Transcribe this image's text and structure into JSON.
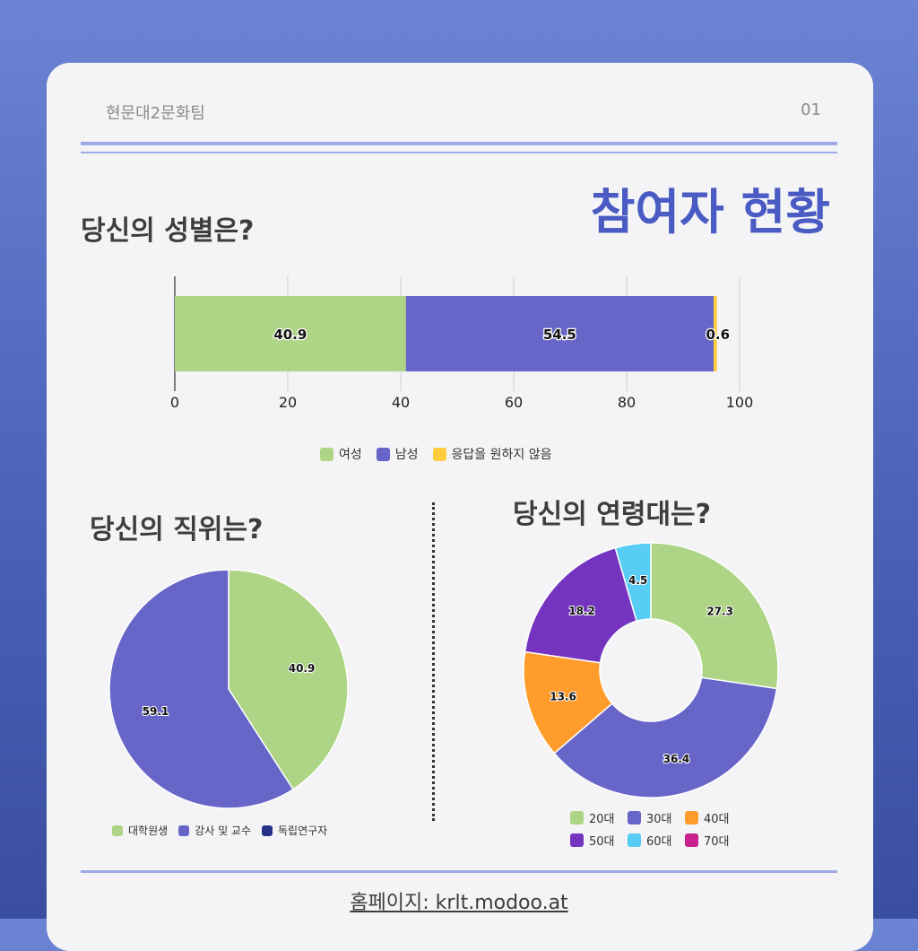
{
  "header": {
    "team": "현문대2문화팀",
    "page_number": "01",
    "title": "참여자 현황"
  },
  "footer": {
    "homepage": "홈페이지: krlt.modoo.at"
  },
  "chart_data": [
    {
      "type": "bar",
      "orientation": "horizontal-stacked",
      "title": "당신의 성별은?",
      "series": [
        {
          "name": "여성",
          "value": 40.9,
          "label": "40.9",
          "color": "#add585"
        },
        {
          "name": "남성",
          "value": 54.5,
          "label": "54.5",
          "color": "#6766c8"
        },
        {
          "name": "응답을 원하지 않음",
          "value": 0.6,
          "label": "0.6",
          "color": "#ffcc40"
        }
      ],
      "xlim": [
        0,
        100
      ],
      "xticks": [
        "0",
        "20",
        "40",
        "60",
        "80",
        "100"
      ],
      "grid": true,
      "legend": "bottom"
    },
    {
      "type": "pie",
      "title": "당신의 직위는?",
      "slices": [
        {
          "name": "대학원생",
          "value": 40.9,
          "label": "40.9",
          "color": "#add585"
        },
        {
          "name": "강사 및 교수",
          "value": 59.1,
          "label": "59.1",
          "color": "#6766c8"
        },
        {
          "name": "독립연구자",
          "value": 0,
          "label": "",
          "color": "#27318a"
        }
      ],
      "legend": "bottom"
    },
    {
      "type": "pie",
      "style": "donut",
      "title": "당신의 연령대는?",
      "slices": [
        {
          "name": "20대",
          "value": 27.3,
          "label": "27.3",
          "color": "#add585"
        },
        {
          "name": "30대",
          "value": 36.4,
          "label": "36.4",
          "color": "#6766c8"
        },
        {
          "name": "40대",
          "value": 13.6,
          "label": "13.6",
          "color": "#ff9c2b"
        },
        {
          "name": "50대",
          "value": 18.2,
          "label": "18.2",
          "color": "#7434bf"
        },
        {
          "name": "60대",
          "value": 4.5,
          "label": "4.5",
          "color": "#57cdf6"
        },
        {
          "name": "70대",
          "value": 0,
          "label": "",
          "color": "#c8208c"
        }
      ],
      "legend": "bottom"
    }
  ]
}
